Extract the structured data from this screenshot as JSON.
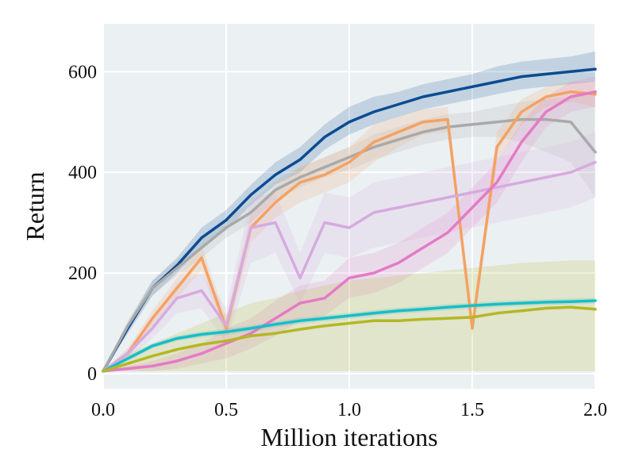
{
  "chart_data": {
    "type": "line",
    "title": "",
    "xlabel": "Million iterations",
    "ylabel": "Return",
    "xlim": [
      0.0,
      2.0
    ],
    "ylim": [
      -30,
      695
    ],
    "grid": true,
    "legend": "none",
    "xticks": [
      0.0,
      0.5,
      1.0,
      1.5,
      2.0
    ],
    "xtick_labels": [
      "0.0",
      "0.5",
      "1.0",
      "1.5",
      "2.0"
    ],
    "yticks": [
      0,
      200,
      400,
      600
    ],
    "ytick_labels": [
      "0",
      "200",
      "400",
      "600"
    ],
    "background": "#ebf0f2",
    "x": [
      0.0,
      0.1,
      0.2,
      0.3,
      0.4,
      0.5,
      0.6,
      0.7,
      0.8,
      0.9,
      1.0,
      1.1,
      1.2,
      1.3,
      1.4,
      1.5,
      1.6,
      1.7,
      1.8,
      1.9,
      2.0
    ],
    "series": [
      {
        "color": "#0b4b92",
        "values": [
          5,
          90,
          170,
          215,
          270,
          305,
          355,
          395,
          425,
          470,
          500,
          520,
          535,
          550,
          560,
          570,
          580,
          590,
          595,
          600,
          605
        ],
        "lower": [
          5,
          80,
          155,
          200,
          250,
          285,
          335,
          375,
          400,
          445,
          475,
          495,
          510,
          525,
          535,
          545,
          555,
          565,
          570,
          575,
          580
        ],
        "upper": [
          5,
          100,
          185,
          230,
          290,
          325,
          375,
          420,
          450,
          495,
          530,
          550,
          560,
          575,
          585,
          595,
          610,
          620,
          625,
          630,
          640
        ]
      },
      {
        "color": "#a9a9a9",
        "values": [
          5,
          95,
          170,
          210,
          250,
          290,
          320,
          365,
          390,
          410,
          430,
          450,
          465,
          480,
          490,
          495,
          500,
          505,
          505,
          500,
          440
        ],
        "lower": [
          5,
          85,
          155,
          195,
          230,
          270,
          300,
          345,
          370,
          390,
          405,
          425,
          440,
          455,
          465,
          470,
          470,
          460,
          440,
          420,
          350
        ],
        "upper": [
          5,
          105,
          185,
          225,
          270,
          310,
          340,
          385,
          410,
          430,
          450,
          475,
          490,
          505,
          515,
          520,
          530,
          540,
          545,
          550,
          560
        ]
      },
      {
        "color": "#f4a262",
        "values": [
          5,
          40,
          110,
          170,
          230,
          90,
          290,
          340,
          380,
          395,
          420,
          460,
          480,
          500,
          505,
          90,
          450,
          520,
          550,
          560,
          555
        ],
        "lower": [
          5,
          30,
          95,
          150,
          205,
          70,
          260,
          310,
          340,
          360,
          380,
          420,
          450,
          475,
          480,
          75,
          420,
          495,
          530,
          540,
          530
        ],
        "upper": [
          5,
          50,
          125,
          190,
          255,
          110,
          320,
          370,
          410,
          430,
          450,
          495,
          510,
          525,
          530,
          110,
          480,
          545,
          570,
          580,
          580
        ]
      },
      {
        "color": "#d6aadf",
        "values": [
          5,
          40,
          90,
          150,
          165,
          95,
          290,
          300,
          190,
          300,
          290,
          320,
          330,
          340,
          350,
          360,
          370,
          380,
          390,
          400,
          420
        ],
        "lower": [
          5,
          30,
          70,
          120,
          130,
          60,
          220,
          240,
          140,
          240,
          230,
          250,
          260,
          270,
          280,
          290,
          300,
          310,
          320,
          330,
          350
        ],
        "upper": [
          5,
          50,
          110,
          180,
          200,
          130,
          350,
          360,
          240,
          360,
          350,
          380,
          390,
          400,
          410,
          420,
          430,
          440,
          450,
          460,
          480
        ]
      },
      {
        "color": "#e47bc6",
        "values": [
          5,
          10,
          15,
          25,
          40,
          60,
          80,
          110,
          140,
          150,
          190,
          200,
          220,
          250,
          280,
          330,
          380,
          460,
          520,
          550,
          560
        ],
        "lower": [
          5,
          5,
          5,
          10,
          20,
          30,
          50,
          75,
          105,
          115,
          150,
          160,
          180,
          210,
          240,
          290,
          340,
          420,
          490,
          520,
          530
        ],
        "upper": [
          5,
          15,
          25,
          40,
          60,
          90,
          110,
          145,
          175,
          185,
          230,
          240,
          260,
          290,
          320,
          370,
          420,
          500,
          550,
          580,
          590
        ]
      },
      {
        "color": "#18bdc9",
        "values": [
          5,
          30,
          55,
          70,
          78,
          83,
          90,
          98,
          105,
          110,
          115,
          120,
          125,
          128,
          132,
          135,
          138,
          140,
          142,
          143,
          145
        ],
        "lower": [
          5,
          25,
          50,
          65,
          72,
          77,
          84,
          92,
          99,
          104,
          109,
          114,
          119,
          122,
          126,
          129,
          132,
          134,
          136,
          137,
          139
        ],
        "upper": [
          5,
          35,
          60,
          75,
          84,
          89,
          96,
          104,
          111,
          116,
          121,
          126,
          131,
          134,
          138,
          141,
          144,
          146,
          148,
          149,
          151
        ]
      },
      {
        "color": "#b4b724",
        "values": [
          5,
          20,
          35,
          48,
          58,
          65,
          75,
          80,
          88,
          95,
          100,
          105,
          105,
          108,
          110,
          112,
          120,
          125,
          130,
          132,
          128
        ],
        "lower": [
          5,
          5,
          5,
          5,
          5,
          5,
          5,
          5,
          5,
          5,
          5,
          5,
          5,
          5,
          5,
          5,
          5,
          5,
          5,
          5,
          5
        ],
        "upper": [
          5,
          40,
          60,
          80,
          100,
          120,
          140,
          150,
          165,
          175,
          185,
          190,
          195,
          200,
          205,
          210,
          215,
          220,
          222,
          225,
          225
        ]
      }
    ]
  }
}
